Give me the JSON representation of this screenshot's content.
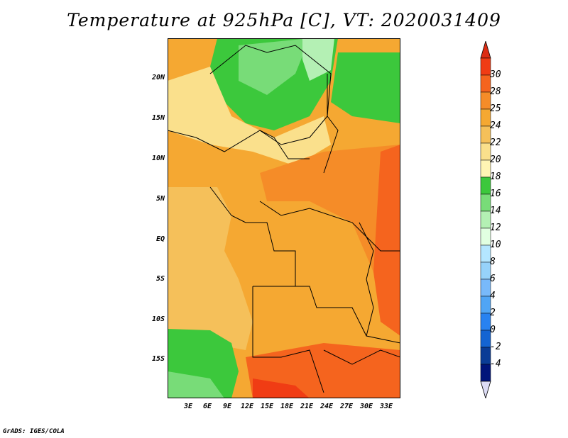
{
  "title": "Temperature at 925hPa [C], VT: 2020031409",
  "credit": "GrADS: IGES/COLA",
  "lat_labels": [
    "20N",
    "15N",
    "10N",
    "5N",
    "EQ",
    "5S",
    "10S",
    "15S"
  ],
  "lon_labels": [
    "3E",
    "6E",
    "9E",
    "12E",
    "15E",
    "18E",
    "21E",
    "24E",
    "27E",
    "30E",
    "33E"
  ],
  "colorbar": {
    "labels": [
      "30",
      "28",
      "25",
      "24",
      "22",
      "20",
      "18",
      "16",
      "14",
      "12",
      "10",
      "8",
      "6",
      "4",
      "2",
      "0",
      "-2",
      "-4"
    ],
    "colors": [
      "#f03c14",
      "#f5641e",
      "#f58c28",
      "#f5a832",
      "#f5c05a",
      "#fae08c",
      "#fff5b4",
      "#3cc83c",
      "#78dc78",
      "#b4f0b4",
      "#e1ffe1",
      "#b4e6ff",
      "#96d2fa",
      "#78b9fa",
      "#50a5f5",
      "#2882f0",
      "#1464d2",
      "#0a3c96",
      "#00147a"
    ],
    "over_color": "#dc2d14",
    "under_color": "#dcdcf5"
  }
}
